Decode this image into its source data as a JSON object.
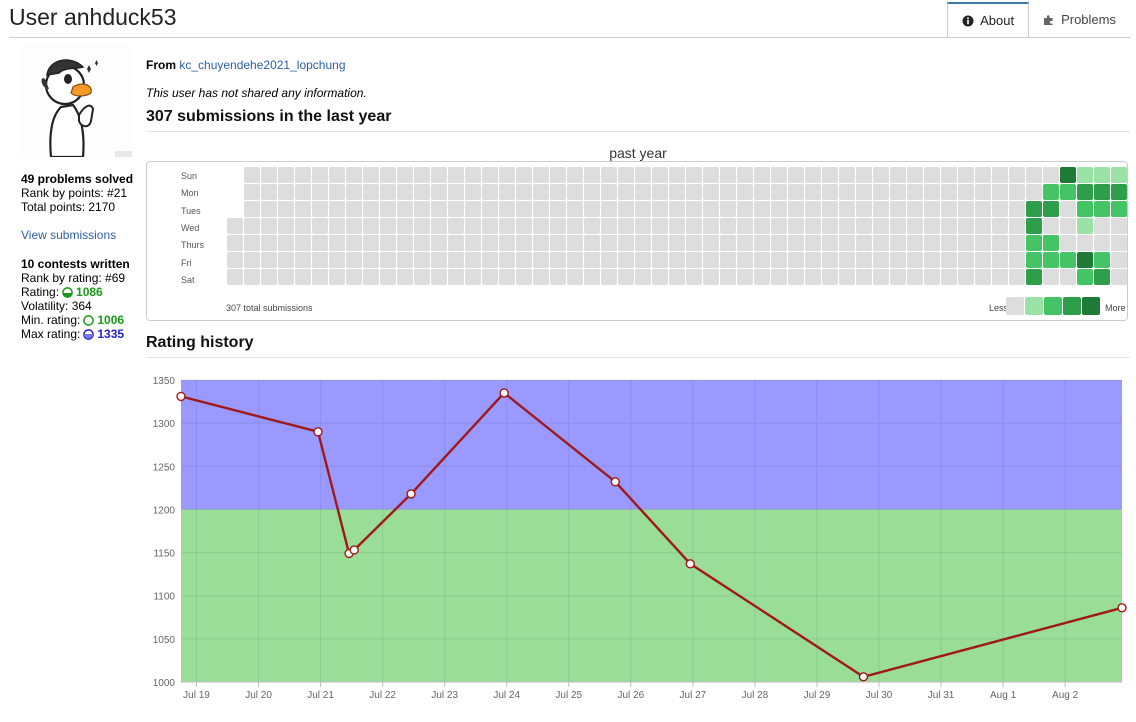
{
  "user_title": "User anhduck53",
  "tabs": [
    {
      "label": "About",
      "icon": "info-circle-icon",
      "active": true
    },
    {
      "label": "Problems",
      "icon": "puzzle-icon",
      "active": false
    }
  ],
  "sidebar": {
    "avatar_icon": "duck-avatar-icon",
    "problems_solved": "49 problems solved",
    "rank_by_points": "Rank by points: #21",
    "total_points": "Total points: 2170",
    "view_submissions": "View submissions",
    "contests_written": "10 contests written",
    "rank_by_rating": "Rank by rating: #69",
    "rating_label": "Rating:",
    "rating_value": "1086",
    "volatility": "Volatility: 364",
    "min_rating_label": "Min. rating:",
    "min_rating_value": "1006",
    "max_rating_label": "Max rating:",
    "max_rating_value": "1335"
  },
  "about": {
    "from_label": "From",
    "from_org": "kc_chuyendehe2021_lopchung",
    "info_text": "This user has not shared any information."
  },
  "heatmap": {
    "title": "307 submissions in the last year",
    "caption": "past year",
    "day_labels": [
      "Sun",
      "Mon",
      "Tues",
      "Wed",
      "Thurs",
      "Fri",
      "Sat"
    ],
    "total_text": "307 total submissions",
    "legend_less": "Less",
    "legend_more": "More",
    "colors": [
      "#dddddd",
      "#9be2a6",
      "#45c465",
      "#2e9e4a",
      "#1f7a36"
    ],
    "weeks": 53,
    "first_week_start_day": 3,
    "active": [
      {
        "week": 47,
        "day": 2,
        "level": 3
      },
      {
        "week": 47,
        "day": 3,
        "level": 3
      },
      {
        "week": 47,
        "day": 4,
        "level": 2
      },
      {
        "week": 47,
        "day": 5,
        "level": 2
      },
      {
        "week": 47,
        "day": 6,
        "level": 3
      },
      {
        "week": 48,
        "day": 1,
        "level": 2
      },
      {
        "week": 48,
        "day": 2,
        "level": 3
      },
      {
        "week": 48,
        "day": 4,
        "level": 2
      },
      {
        "week": 48,
        "day": 5,
        "level": 2
      },
      {
        "week": 49,
        "day": 0,
        "level": 4
      },
      {
        "week": 49,
        "day": 1,
        "level": 2
      },
      {
        "week": 49,
        "day": 5,
        "level": 2
      },
      {
        "week": 50,
        "day": 0,
        "level": 1
      },
      {
        "week": 50,
        "day": 1,
        "level": 3
      },
      {
        "week": 50,
        "day": 2,
        "level": 2
      },
      {
        "week": 50,
        "day": 3,
        "level": 1
      },
      {
        "week": 50,
        "day": 5,
        "level": 4
      },
      {
        "week": 50,
        "day": 6,
        "level": 2
      },
      {
        "week": 51,
        "day": 0,
        "level": 1
      },
      {
        "week": 51,
        "day": 1,
        "level": 3
      },
      {
        "week": 51,
        "day": 2,
        "level": 2
      },
      {
        "week": 51,
        "day": 5,
        "level": 2
      },
      {
        "week": 51,
        "day": 6,
        "level": 3
      },
      {
        "week": 52,
        "day": 0,
        "level": 1
      },
      {
        "week": 52,
        "day": 1,
        "level": 3
      },
      {
        "week": 52,
        "day": 2,
        "level": 2
      }
    ]
  },
  "rating_history_title": "Rating history",
  "chart_data": {
    "type": "line",
    "title": "Rating history",
    "xlabel": "",
    "ylabel": "",
    "x_tick_labels": [
      "Jul 19",
      "Jul 20",
      "Jul 21",
      "Jul 22",
      "Jul 23",
      "Jul 24",
      "Jul 25",
      "Jul 26",
      "Jul 27",
      "Jul 28",
      "Jul 29",
      "Jul 30",
      "Jul 31",
      "Aug 1",
      "Aug 2"
    ],
    "y_ticks": [
      1000,
      1050,
      1100,
      1150,
      1200,
      1250,
      1300,
      1350
    ],
    "ylim": [
      1000,
      1350
    ],
    "xlim": [
      "Jul 18 18:00",
      "Aug 2 22:00"
    ],
    "bands": [
      {
        "from": 1000,
        "to": 1200,
        "color": "#99dd99"
      },
      {
        "from": 1200,
        "to": 1350,
        "color": "#9999ff"
      }
    ],
    "line_color": "#a01818",
    "grid": true,
    "points": [
      {
        "x": "Jul 18 18:00",
        "y": 1331
      },
      {
        "x": "Jul 20 23:00",
        "y": 1290
      },
      {
        "x": "Jul 21 11:00",
        "y": 1149
      },
      {
        "x": "Jul 21 13:00",
        "y": 1153
      },
      {
        "x": "Jul 22 11:00",
        "y": 1218
      },
      {
        "x": "Jul 23 23:00",
        "y": 1335
      },
      {
        "x": "Jul 25 18:00",
        "y": 1232
      },
      {
        "x": "Jul 26 23:00",
        "y": 1137
      },
      {
        "x": "Jul 29 18:00",
        "y": 1006
      },
      {
        "x": "Aug 2 22:00",
        "y": 1086
      }
    ]
  }
}
